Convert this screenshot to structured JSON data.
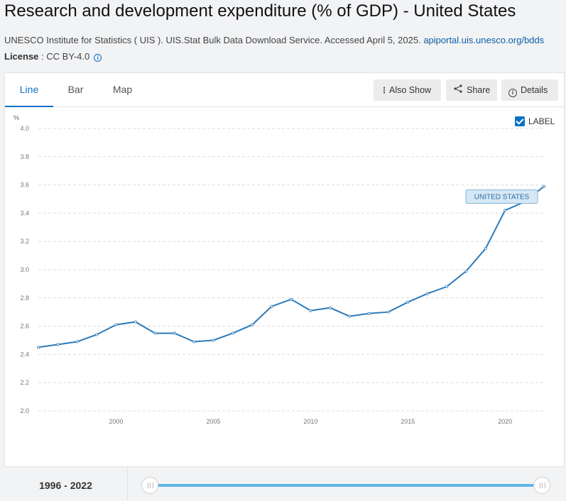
{
  "header": {
    "title": "Research and development expenditure (% of GDP) - United States",
    "source_text": "UNESCO Institute for Statistics ( UIS ). UIS.Stat Bulk Data Download Service. Accessed April 5, 2025.",
    "source_link": "apiportal.uis.unesco.org/bdds",
    "license_label": "License",
    "license_value": " : CC BY-4.0",
    "license_info_icon": "info-icon"
  },
  "tabs": [
    {
      "label": "Line",
      "active": true
    },
    {
      "label": "Bar",
      "active": false
    },
    {
      "label": "Map",
      "active": false
    }
  ],
  "toolbar": {
    "also_show": "Also Show",
    "share": "Share",
    "details": "Details",
    "also_show_icon": "kebab-icon",
    "share_icon": "share-icon",
    "details_icon": "info-icon"
  },
  "label_toggle": {
    "label": "LABEL",
    "checked": true
  },
  "footer": {
    "range_start": "1996",
    "range_separator": " - ",
    "range_end": "2022"
  },
  "colors": {
    "accent": "#0a71c7",
    "line": "#2d7ab8",
    "series_label_bg": "#d6e8f5"
  },
  "chart_data": {
    "type": "line",
    "title": "",
    "ylabel": "%",
    "xlabel": "",
    "xlim": [
      1996,
      2022
    ],
    "ylim": [
      2.0,
      4.0
    ],
    "yticks": [
      "2.0",
      "2.2",
      "2.4",
      "2.6",
      "2.8",
      "3.0",
      "3.2",
      "3.4",
      "3.6",
      "3.8",
      "4.0"
    ],
    "xticks": [
      "2000",
      "2005",
      "2010",
      "2015",
      "2020"
    ],
    "grid": true,
    "series": [
      {
        "name": "UNITED STATES",
        "x": [
          1996,
          1997,
          1998,
          1999,
          2000,
          2001,
          2002,
          2003,
          2004,
          2005,
          2006,
          2007,
          2008,
          2009,
          2010,
          2011,
          2012,
          2013,
          2014,
          2015,
          2016,
          2017,
          2018,
          2019,
          2020,
          2021,
          2022
        ],
        "values": [
          2.45,
          2.47,
          2.49,
          2.54,
          2.61,
          2.63,
          2.55,
          2.55,
          2.49,
          2.5,
          2.55,
          2.61,
          2.74,
          2.79,
          2.71,
          2.73,
          2.67,
          2.69,
          2.7,
          2.77,
          2.83,
          2.88,
          2.99,
          3.15,
          3.42,
          3.48,
          3.59
        ]
      }
    ]
  }
}
